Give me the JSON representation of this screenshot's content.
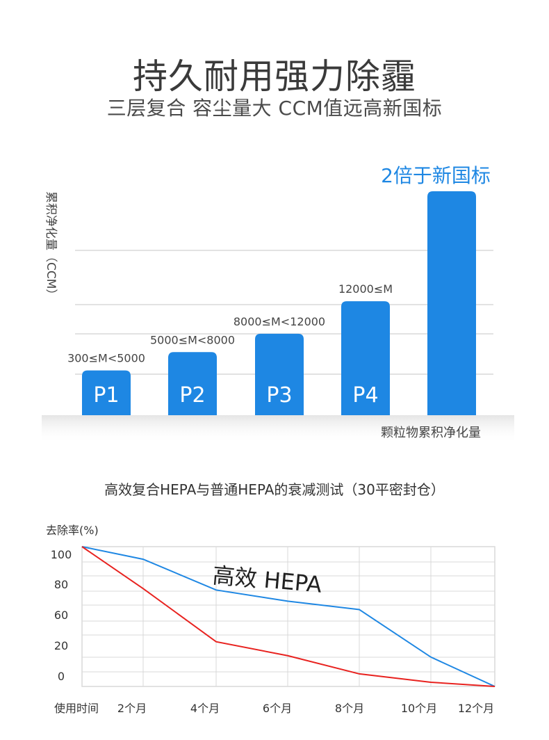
{
  "header": {
    "title": "持久耐用强力除霾",
    "subtitle": "三层复合 容尘量大 CCM值远高新国标"
  },
  "colors": {
    "blue": "#1e87e3",
    "red": "#e8221f",
    "grid": "#d9d9d9",
    "text": "#333333"
  },
  "chart_data": [
    {
      "type": "bar",
      "ylabel": "累积净化量（CCM）",
      "xlabel": "颗粒物累积净化量",
      "categories": [
        "P1",
        "P2",
        "P3",
        "P4",
        ""
      ],
      "range_labels": [
        "300≤M<5000",
        "5000≤M<8000",
        "8000≤M<12000",
        "12000≤M",
        ""
      ],
      "values": [
        0.11,
        0.155,
        0.2,
        0.28,
        0.55
      ],
      "highlight_label": "2倍于新国标",
      "grid": true
    },
    {
      "type": "line",
      "title": "高效复合HEPA与普通HEPA的衰减测试（30平密封仓）",
      "ylabel": "去除率(%)",
      "xlabel": "使用时间",
      "x_ticks": [
        "2个月",
        "4个月",
        "6个月",
        "8个月",
        "10个月",
        "12个月"
      ],
      "y_ticks": [
        "100",
        "80",
        "60",
        "20",
        "0"
      ],
      "annotation": "高效 HEPA",
      "grid": true,
      "series": [
        {
          "name": "高效 HEPA",
          "color": "#1e87e3",
          "values": [
            100,
            91,
            69,
            61,
            55,
            21,
            0
          ]
        },
        {
          "name": "",
          "color": "#e8221f",
          "values": [
            100,
            70,
            32,
            22,
            9,
            3,
            0
          ]
        }
      ]
    }
  ]
}
